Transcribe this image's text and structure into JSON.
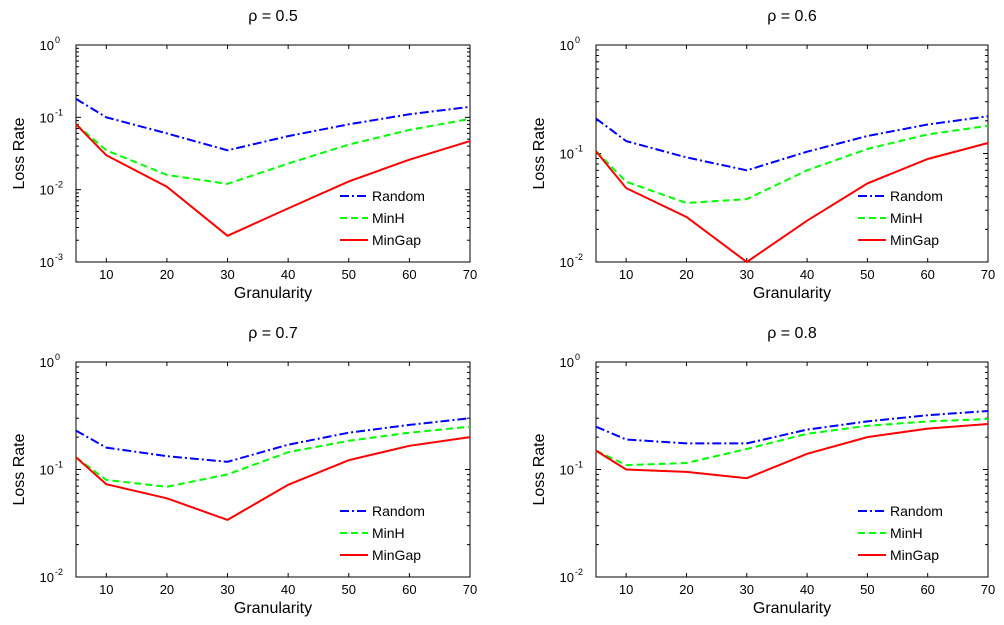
{
  "colors": {
    "Random": "#0000ff",
    "MinH": "#00ff00",
    "MinGap": "#ff0000"
  },
  "chart_data": [
    {
      "type": "line",
      "title": "ρ = 0.5",
      "xlabel": "Granularity",
      "ylabel": "Loss Rate",
      "xlim": [
        5,
        70
      ],
      "ylim": [
        0.001,
        1
      ],
      "yscale": "log",
      "xticks": [
        "10",
        "20",
        "30",
        "40",
        "50",
        "60",
        "70"
      ],
      "yticks": [
        {
          "base": "10",
          "exp": "-3"
        },
        {
          "base": "10",
          "exp": "-2"
        },
        {
          "base": "10",
          "exp": "-1"
        },
        {
          "base": "10",
          "exp": "0"
        }
      ],
      "x": [
        5,
        10,
        20,
        30,
        40,
        50,
        60,
        70
      ],
      "series": [
        {
          "name": "Random",
          "style": "dash-dot",
          "values": [
            0.18,
            0.1,
            0.06,
            0.035,
            0.055,
            0.08,
            0.11,
            0.14
          ]
        },
        {
          "name": "MinH",
          "style": "dashed",
          "values": [
            0.08,
            0.035,
            0.016,
            0.012,
            0.023,
            0.042,
            0.067,
            0.095
          ]
        },
        {
          "name": "MinGap",
          "style": "solid",
          "values": [
            0.08,
            0.03,
            0.011,
            0.0023,
            0.0055,
            0.013,
            0.026,
            0.047
          ]
        }
      ],
      "legend": "bottom-right",
      "grid": false
    },
    {
      "type": "line",
      "title": "ρ = 0.6",
      "xlabel": "Granularity",
      "ylabel": "Loss Rate",
      "xlim": [
        5,
        70
      ],
      "ylim": [
        0.01,
        1
      ],
      "yscale": "log",
      "xticks": [
        "10",
        "20",
        "30",
        "40",
        "50",
        "60",
        "70"
      ],
      "yticks": [
        {
          "base": "10",
          "exp": "-2"
        },
        {
          "base": "10",
          "exp": "-1"
        },
        {
          "base": "10",
          "exp": "0"
        }
      ],
      "x": [
        5,
        10,
        20,
        30,
        40,
        50,
        60,
        70
      ],
      "series": [
        {
          "name": "Random",
          "style": "dash-dot",
          "values": [
            0.21,
            0.13,
            0.092,
            0.07,
            0.104,
            0.145,
            0.185,
            0.22
          ]
        },
        {
          "name": "MinH",
          "style": "dashed",
          "values": [
            0.105,
            0.055,
            0.035,
            0.038,
            0.07,
            0.11,
            0.15,
            0.18
          ]
        },
        {
          "name": "MinGap",
          "style": "solid",
          "values": [
            0.105,
            0.048,
            0.026,
            0.01,
            0.024,
            0.053,
            0.089,
            0.125
          ]
        }
      ],
      "legend": "bottom-right",
      "grid": false
    },
    {
      "type": "line",
      "title": "ρ = 0.7",
      "xlabel": "Granularity",
      "ylabel": "Loss Rate",
      "xlim": [
        5,
        70
      ],
      "ylim": [
        0.01,
        1
      ],
      "yscale": "log",
      "xticks": [
        "10",
        "20",
        "30",
        "40",
        "50",
        "60",
        "70"
      ],
      "yticks": [
        {
          "base": "10",
          "exp": "-2"
        },
        {
          "base": "10",
          "exp": "-1"
        },
        {
          "base": "10",
          "exp": "0"
        }
      ],
      "x": [
        5,
        10,
        20,
        30,
        40,
        50,
        60,
        70
      ],
      "series": [
        {
          "name": "Random",
          "style": "dash-dot",
          "values": [
            0.23,
            0.16,
            0.133,
            0.118,
            0.17,
            0.22,
            0.26,
            0.3
          ]
        },
        {
          "name": "MinH",
          "style": "dashed",
          "values": [
            0.13,
            0.08,
            0.069,
            0.09,
            0.145,
            0.185,
            0.22,
            0.25
          ]
        },
        {
          "name": "MinGap",
          "style": "solid",
          "values": [
            0.13,
            0.073,
            0.054,
            0.034,
            0.072,
            0.122,
            0.166,
            0.2
          ]
        }
      ],
      "legend": "bottom-right",
      "grid": false
    },
    {
      "type": "line",
      "title": "ρ = 0.8",
      "xlabel": "Granularity",
      "ylabel": "Loss Rate",
      "xlim": [
        5,
        70
      ],
      "ylim": [
        0.01,
        1
      ],
      "yscale": "log",
      "xticks": [
        "10",
        "20",
        "30",
        "40",
        "50",
        "60",
        "70"
      ],
      "yticks": [
        {
          "base": "10",
          "exp": "-2"
        },
        {
          "base": "10",
          "exp": "-1"
        },
        {
          "base": "10",
          "exp": "0"
        }
      ],
      "x": [
        5,
        10,
        20,
        30,
        40,
        50,
        60,
        70
      ],
      "series": [
        {
          "name": "Random",
          "style": "dash-dot",
          "values": [
            0.25,
            0.19,
            0.175,
            0.175,
            0.235,
            0.28,
            0.32,
            0.35
          ]
        },
        {
          "name": "MinH",
          "style": "dashed",
          "values": [
            0.15,
            0.11,
            0.115,
            0.155,
            0.215,
            0.255,
            0.28,
            0.295
          ]
        },
        {
          "name": "MinGap",
          "style": "solid",
          "values": [
            0.15,
            0.1,
            0.095,
            0.083,
            0.14,
            0.2,
            0.24,
            0.265
          ]
        }
      ],
      "legend": "bottom-right",
      "grid": false
    }
  ]
}
